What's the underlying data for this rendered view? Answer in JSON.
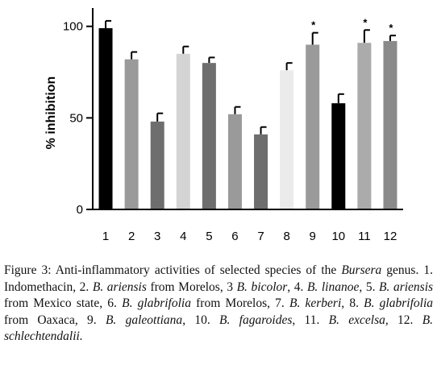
{
  "chart_data": {
    "type": "bar",
    "ylabel": "% inhibition",
    "xlabel": "",
    "title": "",
    "ylim": [
      0,
      110
    ],
    "yticks": [
      0,
      50,
      100
    ],
    "grid": false,
    "legend": "none",
    "categories": [
      "1",
      "2",
      "3",
      "4",
      "5",
      "6",
      "7",
      "8",
      "9",
      "10",
      "11",
      "12"
    ],
    "values": [
      99,
      82,
      48,
      85,
      80,
      52,
      41,
      76,
      90,
      58,
      91,
      92
    ],
    "errors": [
      4,
      4,
      4.5,
      4,
      3,
      4,
      4,
      4,
      6.5,
      5,
      7,
      3
    ],
    "significant": [
      false,
      false,
      false,
      false,
      false,
      false,
      false,
      false,
      true,
      false,
      true,
      true
    ],
    "significance_marker": "*",
    "colors": [
      "#000000",
      "#9a9a9a",
      "#6e6e6e",
      "#d4d4d4",
      "#6e6e6e",
      "#9a9a9a",
      "#6e6e6e",
      "#ebebeb",
      "#9a9a9a",
      "#000000",
      "#ababab",
      "#8a8a8a"
    ]
  },
  "caption": {
    "label": "Figure 3:",
    "parts": [
      {
        "t": " Anti-inflammatory activities of selected species of the ",
        "i": false
      },
      {
        "t": "Bursera",
        "i": true
      },
      {
        "t": " genus. 1. Indomethacin, 2. ",
        "i": false
      },
      {
        "t": "B. ariensis",
        "i": true
      },
      {
        "t": " from Morelos, 3 ",
        "i": false
      },
      {
        "t": "B. bicolor",
        "i": true
      },
      {
        "t": ", 4. ",
        "i": false
      },
      {
        "t": "B. linanoe",
        "i": true
      },
      {
        "t": ", 5. ",
        "i": false
      },
      {
        "t": "B. ariensis",
        "i": true
      },
      {
        "t": " from Mexico state, 6. ",
        "i": false
      },
      {
        "t": "B. glabrifolia",
        "i": true
      },
      {
        "t": " from Morelos, 7. ",
        "i": false
      },
      {
        "t": "B. kerberi",
        "i": true
      },
      {
        "t": ", 8. ",
        "i": false
      },
      {
        "t": "B. glabrifolia",
        "i": true
      },
      {
        "t": " from Oaxaca, 9. ",
        "i": false
      },
      {
        "t": "B. galeottiana",
        "i": true
      },
      {
        "t": ", 10. ",
        "i": false
      },
      {
        "t": "B. fagaroides",
        "i": true
      },
      {
        "t": ", 11. ",
        "i": false
      },
      {
        "t": "B. excelsa,",
        "i": true
      },
      {
        "t": " 12. ",
        "i": false
      },
      {
        "t": "B. schlechtendalii.",
        "i": true
      }
    ]
  }
}
